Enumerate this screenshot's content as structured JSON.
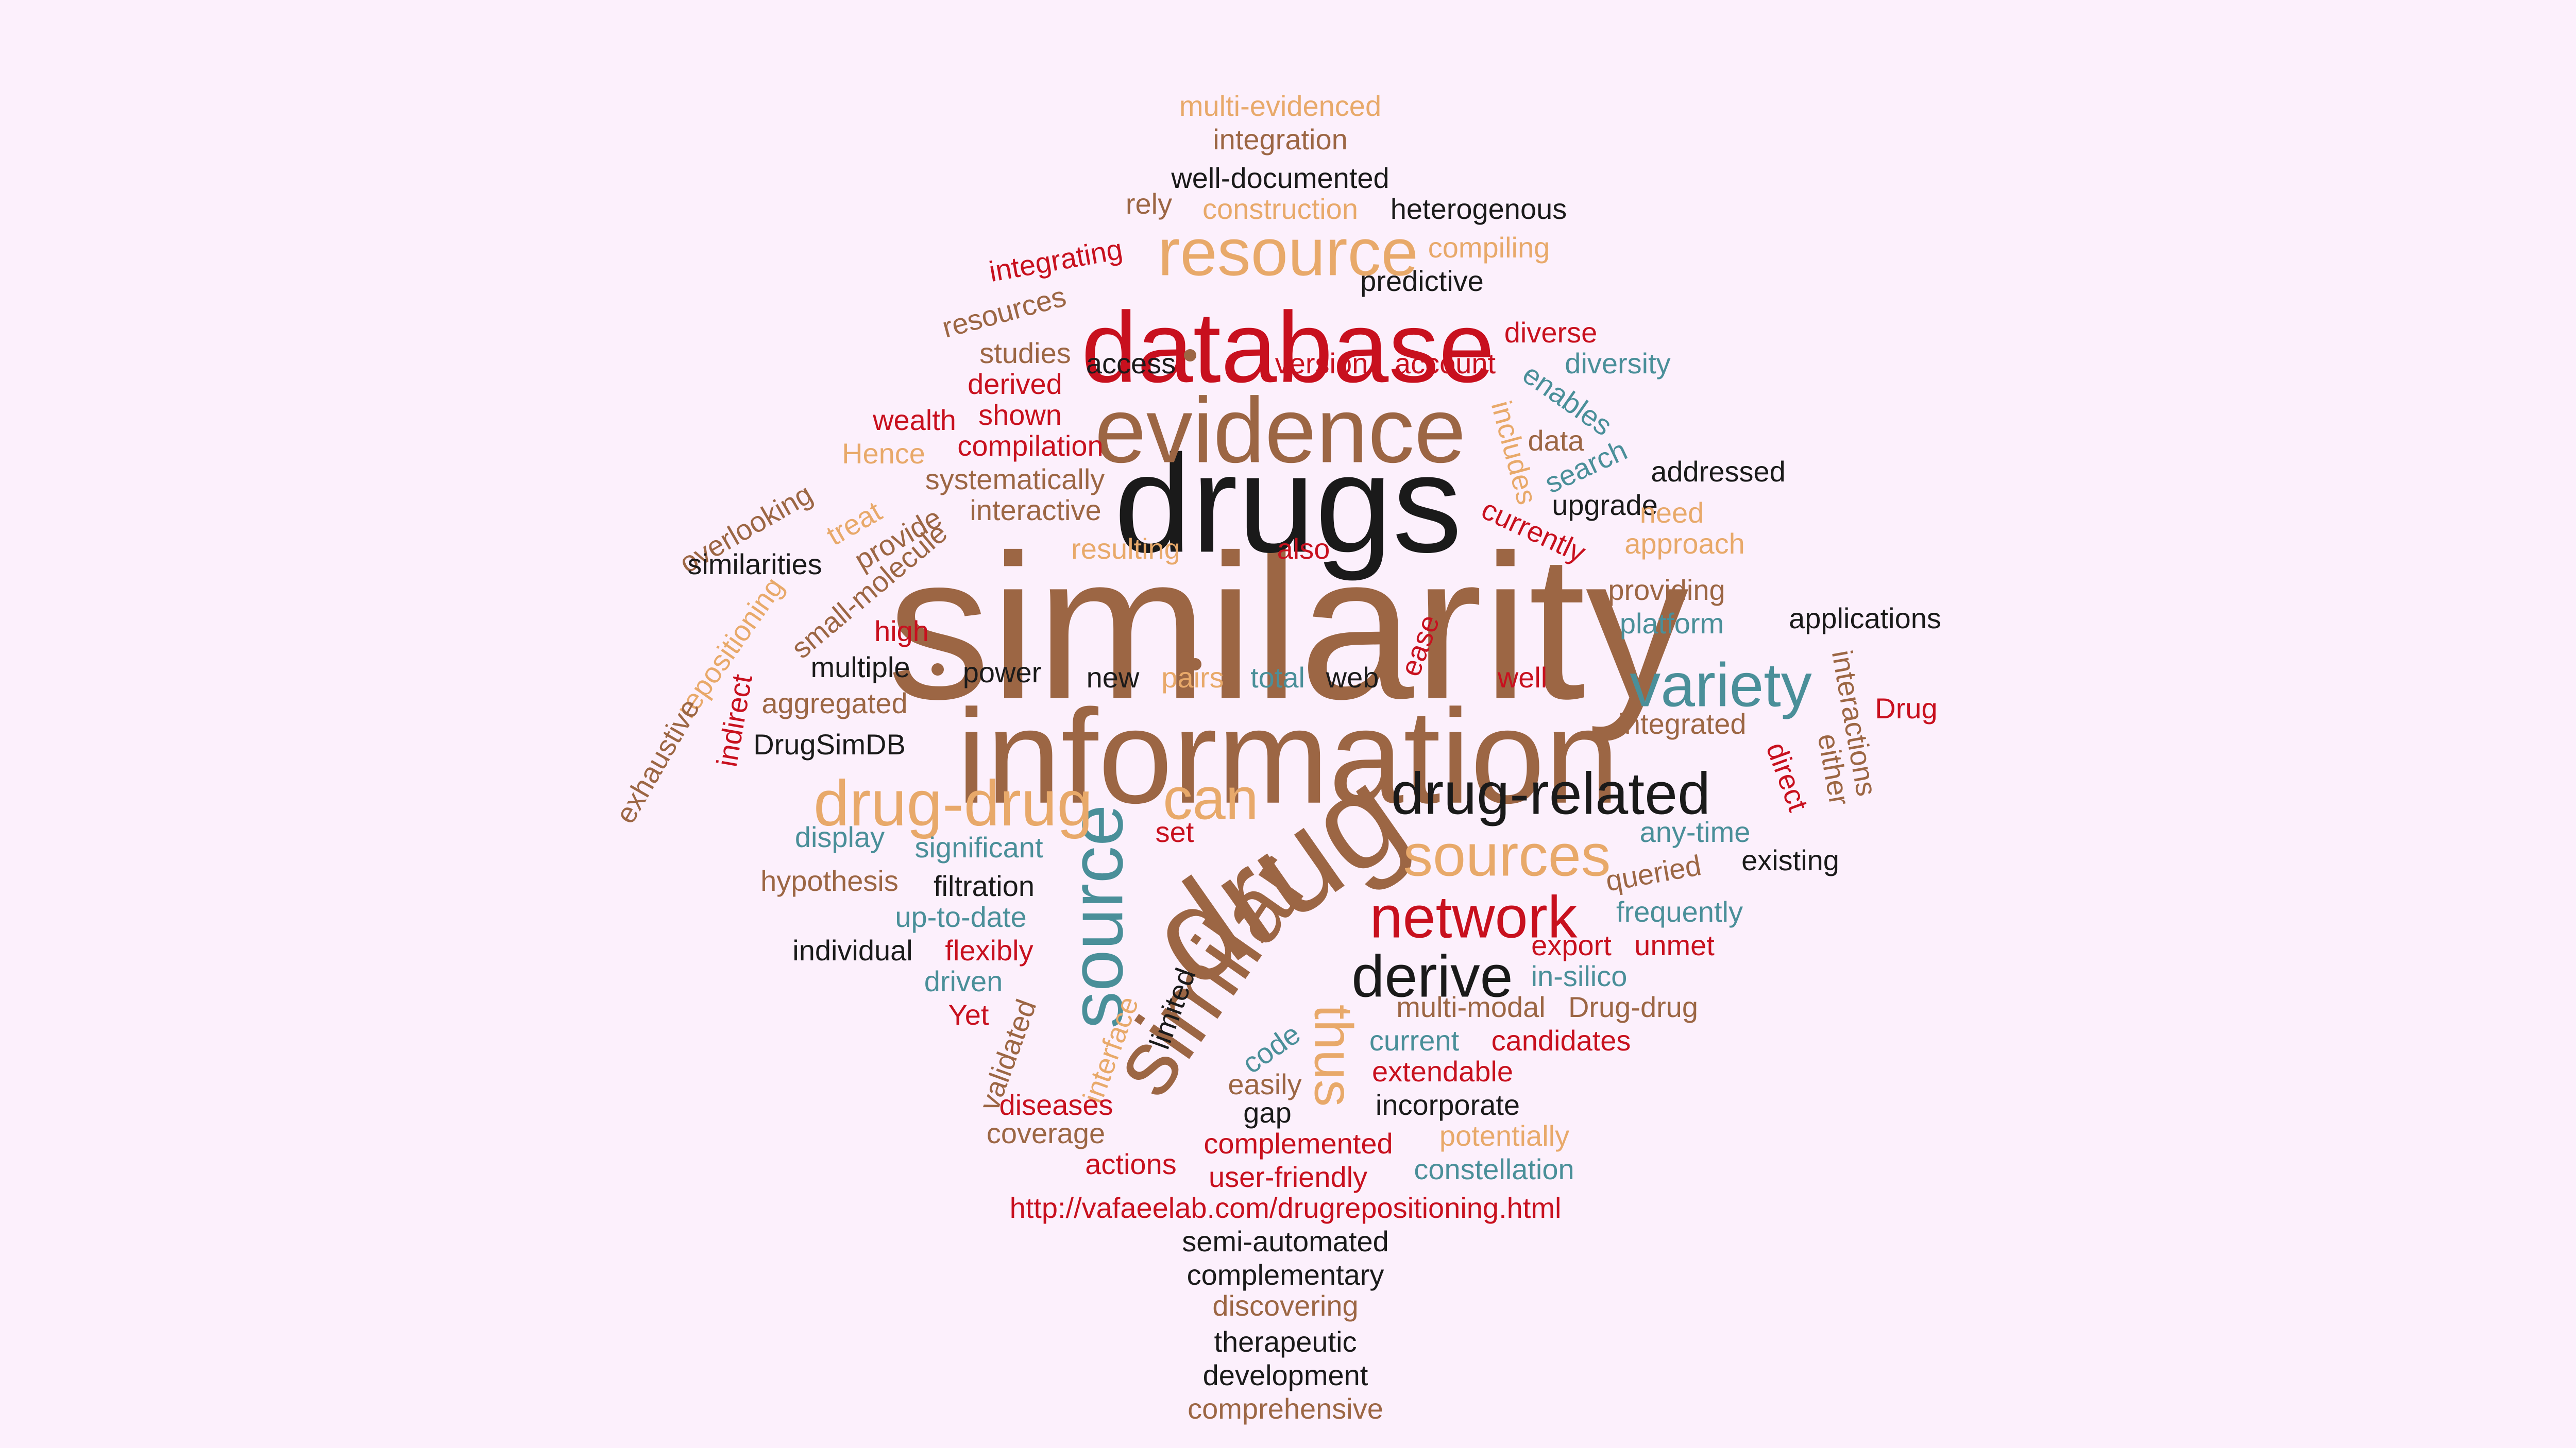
{
  "background": "#fcf0fc",
  "palette": {
    "black": "#1a1a1a",
    "brown": "#9c6644",
    "tan": "#e8a96a",
    "red": "#c8101e",
    "teal": "#4a8f99"
  },
  "words": [
    {
      "t": "similarity",
      "c": "brown"
    },
    {
      "t": "information",
      "c": "brown"
    },
    {
      "t": "drugs",
      "c": "black"
    },
    {
      "t": "drug",
      "c": "brown"
    },
    {
      "t": "database",
      "c": "red"
    },
    {
      "t": "evidence",
      "c": "brown"
    },
    {
      "t": "similar",
      "c": "brown"
    },
    {
      "t": "source",
      "c": "teal"
    },
    {
      "t": "resource",
      "c": "tan"
    },
    {
      "t": "variety",
      "c": "teal"
    },
    {
      "t": "drug-drug",
      "c": "tan"
    },
    {
      "t": "drug-related",
      "c": "black"
    },
    {
      "t": "can",
      "c": "tan"
    },
    {
      "t": "sources",
      "c": "tan"
    },
    {
      "t": "network",
      "c": "red"
    },
    {
      "t": "derive",
      "c": "black"
    },
    {
      "t": "thus",
      "c": "tan"
    },
    {
      "t": "multi-evidenced",
      "c": "tan"
    },
    {
      "t": "integration",
      "c": "brown"
    },
    {
      "t": "well-documented",
      "c": "black"
    },
    {
      "t": "rely",
      "c": "brown"
    },
    {
      "t": "construction",
      "c": "tan"
    },
    {
      "t": "heterogenous",
      "c": "black"
    },
    {
      "t": "integrating",
      "c": "red"
    },
    {
      "t": "compiling",
      "c": "tan"
    },
    {
      "t": "predictive",
      "c": "black"
    },
    {
      "t": "resources",
      "c": "brown"
    },
    {
      "t": "diverse",
      "c": "red"
    },
    {
      "t": "studies",
      "c": "brown"
    },
    {
      "t": "access",
      "c": "black"
    },
    {
      "t": "version",
      "c": "red"
    },
    {
      "t": "account",
      "c": "red"
    },
    {
      "t": "diversity",
      "c": "teal"
    },
    {
      "t": "derived",
      "c": "red"
    },
    {
      "t": "enables",
      "c": "teal"
    },
    {
      "t": "wealth",
      "c": "red"
    },
    {
      "t": "shown",
      "c": "red"
    },
    {
      "t": "includes",
      "c": "tan"
    },
    {
      "t": "data",
      "c": "brown"
    },
    {
      "t": "Hence",
      "c": "tan"
    },
    {
      "t": "compilation",
      "c": "red"
    },
    {
      "t": "search",
      "c": "teal"
    },
    {
      "t": "addressed",
      "c": "black"
    },
    {
      "t": "systematically",
      "c": "brown"
    },
    {
      "t": "upgrade",
      "c": "black"
    },
    {
      "t": "overlooking",
      "c": "brown"
    },
    {
      "t": "interactive",
      "c": "brown"
    },
    {
      "t": "need",
      "c": "tan"
    },
    {
      "t": "treat",
      "c": "tan"
    },
    {
      "t": "currently",
      "c": "red"
    },
    {
      "t": "provide",
      "c": "brown"
    },
    {
      "t": "approach",
      "c": "tan"
    },
    {
      "t": "resulting",
      "c": "tan"
    },
    {
      "t": "also",
      "c": "red"
    },
    {
      "t": "similarities",
      "c": "black"
    },
    {
      "t": "small-molecule",
      "c": "brown"
    },
    {
      "t": "providing",
      "c": "brown"
    },
    {
      "t": "repositioning",
      "c": "tan"
    },
    {
      "t": "platform",
      "c": "teal"
    },
    {
      "t": "applications",
      "c": "black"
    },
    {
      "t": "high",
      "c": "red"
    },
    {
      "t": "ease",
      "c": "red"
    },
    {
      "t": "interactions",
      "c": "brown"
    },
    {
      "t": "multiple",
      "c": "black"
    },
    {
      "t": "power",
      "c": "black"
    },
    {
      "t": "new",
      "c": "black"
    },
    {
      "t": "pairs",
      "c": "tan"
    },
    {
      "t": "total",
      "c": "teal"
    },
    {
      "t": "web",
      "c": "black"
    },
    {
      "t": "well",
      "c": "red"
    },
    {
      "t": "indirect",
      "c": "red"
    },
    {
      "t": "Drug",
      "c": "red"
    },
    {
      "t": "aggregated",
      "c": "brown"
    },
    {
      "t": "integrated",
      "c": "brown"
    },
    {
      "t": "exhaustive",
      "c": "brown"
    },
    {
      "t": "DrugSimDB",
      "c": "black"
    },
    {
      "t": "either",
      "c": "brown"
    },
    {
      "t": "direct",
      "c": "red"
    },
    {
      "t": "display",
      "c": "teal"
    },
    {
      "t": "significant",
      "c": "teal"
    },
    {
      "t": "set",
      "c": "red"
    },
    {
      "t": "any-time",
      "c": "teal"
    },
    {
      "t": "existing",
      "c": "black"
    },
    {
      "t": "hypothesis",
      "c": "brown"
    },
    {
      "t": "queried",
      "c": "brown"
    },
    {
      "t": "filtration",
      "c": "black"
    },
    {
      "t": "frequently",
      "c": "teal"
    },
    {
      "t": "up-to-date",
      "c": "teal"
    },
    {
      "t": "individual",
      "c": "black"
    },
    {
      "t": "flexibly",
      "c": "red"
    },
    {
      "t": "export",
      "c": "red"
    },
    {
      "t": "unmet",
      "c": "red"
    },
    {
      "t": "driven",
      "c": "teal"
    },
    {
      "t": "in-silico",
      "c": "teal"
    },
    {
      "t": "limited",
      "c": "black"
    },
    {
      "t": "Yet",
      "c": "red"
    },
    {
      "t": "multi-modal",
      "c": "brown"
    },
    {
      "t": "Drug-drug",
      "c": "brown"
    },
    {
      "t": "interface",
      "c": "tan"
    },
    {
      "t": "validated",
      "c": "brown"
    },
    {
      "t": "code",
      "c": "teal"
    },
    {
      "t": "current",
      "c": "teal"
    },
    {
      "t": "candidates",
      "c": "red"
    },
    {
      "t": "extendable",
      "c": "red"
    },
    {
      "t": "easily",
      "c": "brown"
    },
    {
      "t": "diseases",
      "c": "red"
    },
    {
      "t": "incorporate",
      "c": "black"
    },
    {
      "t": "gap",
      "c": "black"
    },
    {
      "t": "coverage",
      "c": "brown"
    },
    {
      "t": "potentially",
      "c": "tan"
    },
    {
      "t": "complemented",
      "c": "red"
    },
    {
      "t": "actions",
      "c": "red"
    },
    {
      "t": "user-friendly",
      "c": "red"
    },
    {
      "t": "constellation",
      "c": "teal"
    },
    {
      "t": "http://vafaeelab.com/drugrepositioning.html",
      "c": "red"
    },
    {
      "t": "semi-automated",
      "c": "black"
    },
    {
      "t": "complementary",
      "c": "black"
    },
    {
      "t": "discovering",
      "c": "brown"
    },
    {
      "t": "therapeutic",
      "c": "black"
    },
    {
      "t": "development",
      "c": "black"
    },
    {
      "t": "comprehensive",
      "c": "brown"
    }
  ]
}
